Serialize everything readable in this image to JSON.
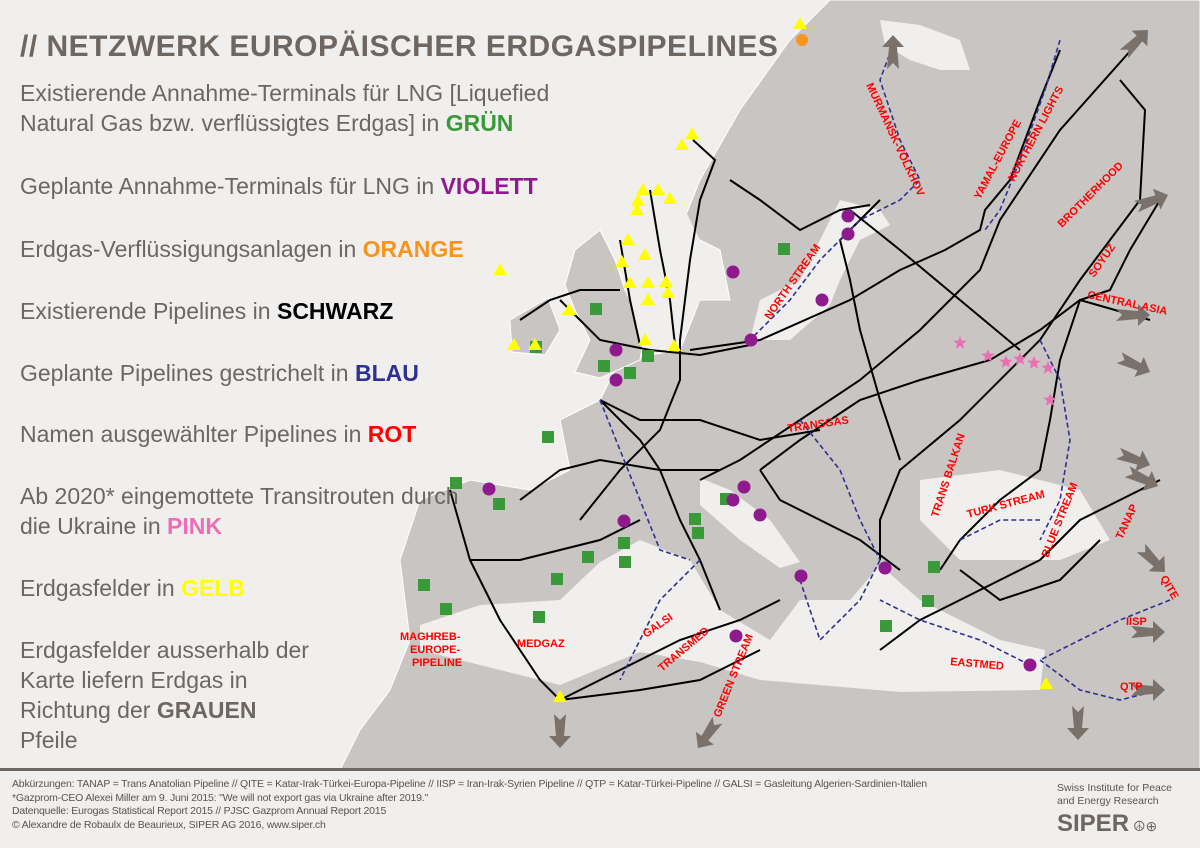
{
  "title": "// NETZWERK EUROPÄISCHER ERDGASPIPELINES",
  "legend": [
    {
      "text": "Existierende Annahme-Terminals für LNG [Liquefied Natural Gas bzw. verflüssigtes Erdgas] in ",
      "highlight": "GRÜN",
      "color": "#3a9a3a"
    },
    {
      "text": "Geplante Annahme-Terminals für LNG in ",
      "highlight": "VIOLETT",
      "color": "#8e1a8e"
    },
    {
      "text": "Erdgas-Verflüssigungsanlagen in ",
      "highlight": "ORANGE",
      "color": "#f7941d"
    },
    {
      "text": "Existierende Pipelines in ",
      "highlight": "SCHWARZ",
      "color": "#000000"
    },
    {
      "text": "Geplante Pipelines gestrichelt in ",
      "highlight": "BLAU",
      "color": "#2e3192"
    },
    {
      "text": "Namen ausgewählter Pipelines in ",
      "highlight": "ROT",
      "color": "#ff0000"
    },
    {
      "text": "Ab 2020* eingemottete Transitrouten durch die Ukraine in ",
      "highlight": "PINK",
      "color": "#ec6fb5"
    },
    {
      "text": "Erdgasfelder in ",
      "highlight": "GELB",
      "color": "#ffff00"
    },
    {
      "text": "Erdgasfelder ausserhalb der Karte liefern Erdgas in Richtung der ",
      "highlight": "GRAUEN",
      "suffix": " Pfeile",
      "color": "#6e6661"
    }
  ],
  "pipelines": {
    "murmansk": "MURMANSK-VOLKHOV",
    "yamal": "YAMAL-EUROPE",
    "northern_lights": "NORTHERN LIGHTS",
    "brotherhood": "BROTHERHOOD",
    "soyuz": "SOYUZ",
    "central_asia": "CENTRAL ASIA",
    "north_stream": "NORTH STREAM",
    "transgas": "TRANSGAS",
    "trans_balkan": "TRANS BALKAN",
    "turk_stream": "TURK STREAM",
    "blue_stream": "BLUE STREAM",
    "tanap": "TANAP",
    "qite": "QITE",
    "iisp": "IISP",
    "qtp": "QTP",
    "eastmed": "EASTMED",
    "galsi": "GALSI",
    "transmed": "TRANSMED",
    "green_stream": "GREEN STREAM",
    "medgaz": "MEDGAZ",
    "maghreb": [
      "MAGHREB-",
      "EUROPE-",
      "PIPELINE"
    ]
  },
  "colors": {
    "land": "#c8c5c3",
    "sea": "#f0efed",
    "existing_pipeline": "#000000",
    "planned_pipeline": "#2e3192",
    "label": "#ff0000",
    "arrow": "#7a716b"
  },
  "footer": {
    "notes": [
      "Abkürzungen: TANAP = Trans Anatolian Pipeline // QITE = Katar-Irak-Türkei-Europa-Pipeline // IISP = Iran-Irak-Syrien Pipeline // QTP = Katar-Türkei-Pipeline // GALSI = Gasleitung Algerien-Sardinien-Italien",
      "*Gazprom-CEO Alexei Miller am 9. Juni 2015: \"We will not export gas via Ukraine after 2019.\"",
      "Datenquelle: Eurogas Statistical Report 2015 // PJSC Gazprom Annual Report 2015",
      "© Alexandre de Robaulx de Beaurieux, SIPER AG 2016, www.siper.ch"
    ],
    "org_line1": "Swiss Institute for Peace",
    "org_line2": "and Energy Research",
    "logo": "SIPER",
    "logo_symbols": "☮⊕"
  }
}
